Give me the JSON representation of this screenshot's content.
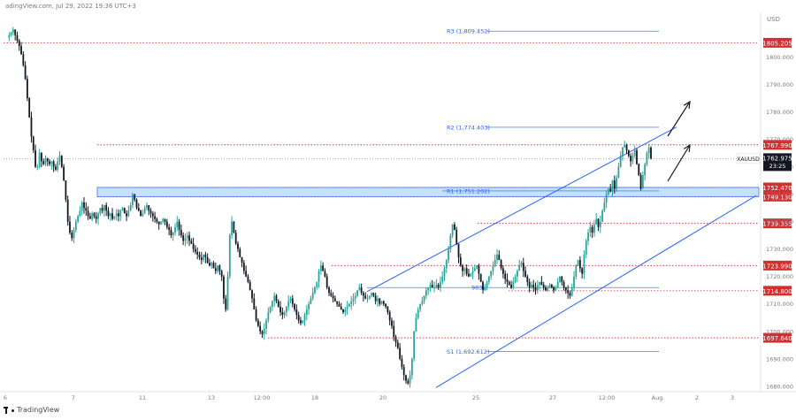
{
  "header": {
    "source_text": "adingView.com, Jul 29, 2022 19:36 UTC+3"
  },
  "footer": {
    "brand": "TradingView",
    "logo_icon": "tradingview-logo-icon"
  },
  "chart_data": {
    "type": "candlestick",
    "symbol": "XAUUSD",
    "currency_label": "USD",
    "last_price": "1762.975",
    "countdown": "23:25",
    "ylim": [
      1678,
      1815
    ],
    "y_ticks": [
      1680,
      1690,
      1700,
      1710,
      1720,
      1730,
      1740,
      1750,
      1760,
      1770,
      1780,
      1790,
      1800
    ],
    "x_ticks": [
      "6",
      "7",
      "11",
      "13",
      "12:00",
      "18",
      "20",
      "25",
      "27",
      "12:00",
      "Aug",
      "2",
      "3"
    ],
    "levels": [
      {
        "price": 1805.205,
        "label": "1805.205"
      },
      {
        "price": 1767.99,
        "label": "1767.990"
      },
      {
        "price": 1752.47,
        "label": "1752.470"
      },
      {
        "price": 1749.13,
        "label": "1749.130"
      },
      {
        "price": 1739.355,
        "label": "1739.355"
      },
      {
        "price": 1723.99,
        "label": "1723.990"
      },
      {
        "price": 1714.8,
        "label": "1714.800"
      },
      {
        "price": 1697.64,
        "label": "1697.640"
      }
    ],
    "pivots": [
      {
        "name": "R3",
        "label": "R3 (1,809.452)",
        "price": 1809.452
      },
      {
        "name": "R2",
        "label": "R2 (1,774.403)",
        "price": 1774.403
      },
      {
        "name": "R1",
        "label": "R1 (1,751.202)",
        "price": 1751.202
      },
      {
        "name": "PP",
        "label": "983)",
        "price": 1715.983
      },
      {
        "name": "S1",
        "label": "S1 (1,692.612)",
        "price": 1692.612
      }
    ],
    "support_zone": {
      "upper": 1752.47,
      "lower": 1749.13
    },
    "colors": {
      "up": "#26a69a",
      "down": "#131722",
      "level_line": "#c62828",
      "level_badge": "#d32f2f",
      "pivot": "#2962ff",
      "channel": "#2962ff",
      "zone_fill": "#bbdefb",
      "zone_border": "#2962ff",
      "price_badge": "#131722"
    },
    "price_path": [
      1807,
      1808,
      1809,
      1810,
      1808,
      1806,
      1804,
      1801,
      1797,
      1792,
      1785,
      1778,
      1771,
      1766,
      1760,
      1760,
      1765,
      1762,
      1761,
      1763,
      1762,
      1761,
      1762,
      1760,
      1759,
      1762,
      1764,
      1760,
      1755,
      1748,
      1740,
      1736,
      1734,
      1737,
      1740,
      1742,
      1744,
      1747,
      1745,
      1744,
      1742,
      1741,
      1743,
      1742,
      1741,
      1743,
      1745,
      1744,
      1746,
      1744,
      1742,
      1743,
      1741,
      1742,
      1743,
      1742,
      1744,
      1745,
      1743,
      1742,
      1744,
      1746,
      1750,
      1748,
      1745,
      1744,
      1742,
      1743,
      1745,
      1746,
      1744,
      1743,
      1742,
      1741,
      1740,
      1739,
      1740,
      1741,
      1740,
      1738,
      1737,
      1735,
      1736,
      1738,
      1740,
      1737,
      1735,
      1733,
      1734,
      1735,
      1733,
      1732,
      1730,
      1729,
      1728,
      1727,
      1726,
      1728,
      1727,
      1725,
      1724,
      1725,
      1723,
      1722,
      1724,
      1722,
      1720,
      1712,
      1708,
      1720,
      1735,
      1740,
      1736,
      1732,
      1730,
      1727,
      1725,
      1722,
      1720,
      1718,
      1715,
      1712,
      1708,
      1704,
      1702,
      1700,
      1699,
      1701,
      1704,
      1707,
      1709,
      1711,
      1713,
      1711,
      1709,
      1707,
      1706,
      1707,
      1709,
      1711,
      1712,
      1710,
      1708,
      1706,
      1704,
      1703,
      1704,
      1706,
      1708,
      1710,
      1712,
      1714,
      1716,
      1718,
      1722,
      1724,
      1722,
      1720,
      1716,
      1714,
      1713,
      1712,
      1711,
      1710,
      1709,
      1708,
      1707,
      1708,
      1709,
      1710,
      1711,
      1712,
      1713,
      1715,
      1716,
      1714,
      1713,
      1712,
      1712,
      1713,
      1714,
      1713,
      1711,
      1712,
      1710,
      1711,
      1710,
      1709,
      1707,
      1704,
      1702,
      1698,
      1696,
      1694,
      1690,
      1687,
      1684,
      1682,
      1681,
      1684,
      1690,
      1700,
      1705,
      1708,
      1710,
      1711,
      1713,
      1715,
      1716,
      1717,
      1716,
      1716,
      1717,
      1716,
      1718,
      1720,
      1723,
      1726,
      1730,
      1735,
      1739,
      1737,
      1732,
      1727,
      1724,
      1722,
      1723,
      1721,
      1720,
      1721,
      1722,
      1723,
      1724,
      1721,
      1718,
      1715,
      1716,
      1718,
      1720,
      1722,
      1724,
      1726,
      1728,
      1726,
      1723,
      1721,
      1719,
      1718,
      1717,
      1716,
      1718,
      1720,
      1722,
      1724,
      1725,
      1722,
      1720,
      1718,
      1716,
      1717,
      1716,
      1715,
      1717,
      1718,
      1717,
      1716,
      1715,
      1716,
      1717,
      1716,
      1715,
      1716,
      1718,
      1720,
      1718,
      1716,
      1715,
      1714,
      1713,
      1716,
      1720,
      1724,
      1726,
      1723,
      1721,
      1728,
      1733,
      1736,
      1738,
      1736,
      1739,
      1741,
      1738,
      1740,
      1744,
      1747,
      1750,
      1752,
      1751,
      1755,
      1752,
      1756,
      1760,
      1764,
      1767,
      1768,
      1766,
      1764,
      1762,
      1764,
      1766,
      1761,
      1757,
      1752,
      1757,
      1761,
      1765,
      1767,
      1763
    ]
  }
}
